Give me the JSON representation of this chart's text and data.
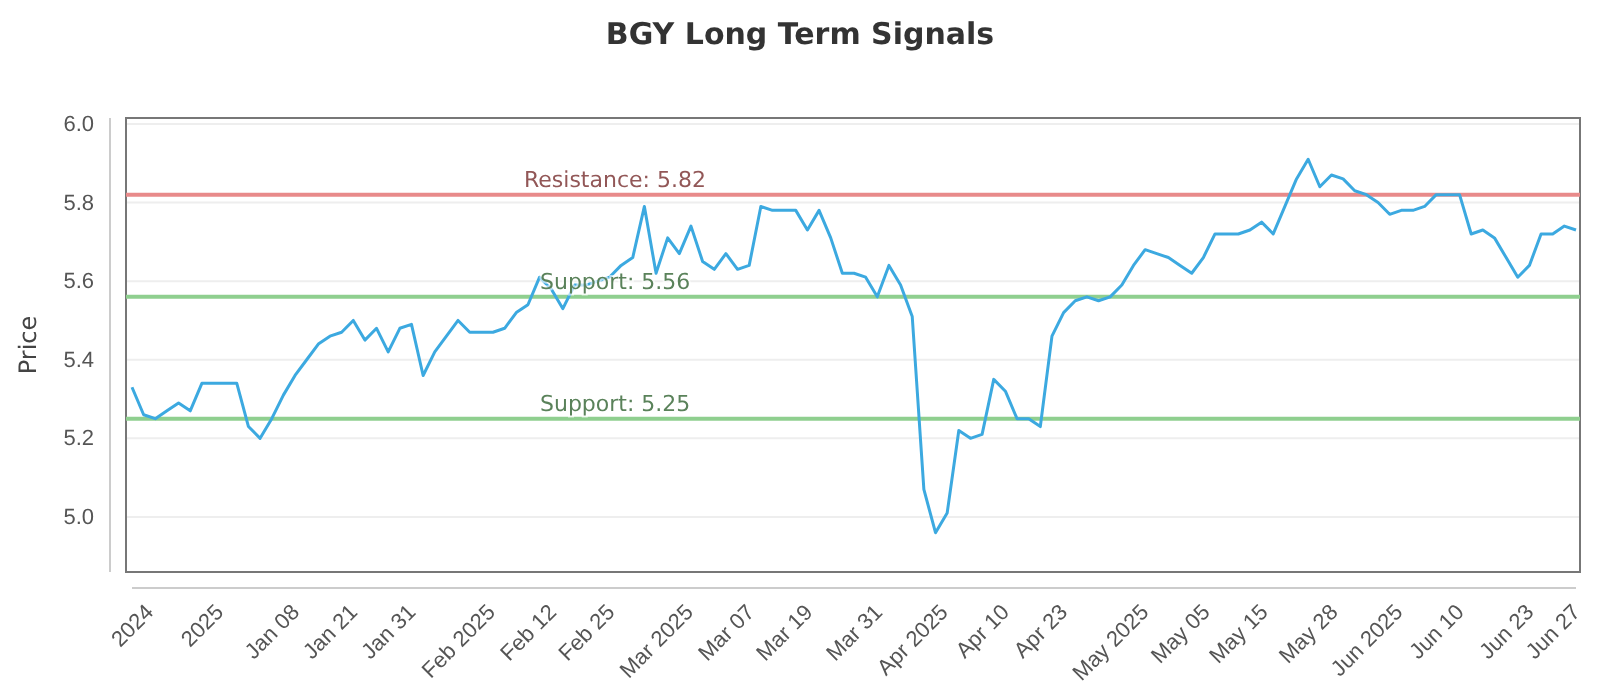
{
  "chart_data": {
    "type": "line",
    "title": "BGY Long Term Signals",
    "ylabel": "Price",
    "categories": [
      "2024",
      null,
      null,
      null,
      null,
      null,
      "2025",
      null,
      null,
      null,
      null,
      null,
      "Jan 08",
      null,
      null,
      null,
      null,
      "Jan 21",
      null,
      null,
      null,
      null,
      "Jan 31",
      null,
      null,
      null,
      null,
      null,
      "Feb 2025",
      null,
      null,
      null,
      null,
      null,
      "Feb 12",
      null,
      null,
      null,
      null,
      "Feb 25",
      null,
      null,
      null,
      null,
      null,
      "Mar 2025",
      null,
      null,
      null,
      null,
      null,
      "Mar 07",
      null,
      null,
      null,
      null,
      "Mar 19",
      null,
      null,
      null,
      null,
      null,
      "Mar 31",
      null,
      null,
      null,
      null,
      "Apr 2025",
      null,
      null,
      null,
      null,
      null,
      "Apr 10",
      null,
      null,
      null,
      null,
      "Apr 23",
      null,
      null,
      null,
      null,
      null,
      "May 2025",
      null,
      null,
      null,
      null,
      null,
      "May 05",
      null,
      null,
      null,
      null,
      "May 15",
      null,
      null,
      null,
      null,
      null,
      "May 28",
      null,
      null,
      null,
      null,
      "Jun 2025",
      null,
      null,
      null,
      null,
      null,
      "Jun 10",
      null,
      null,
      null,
      null,
      null,
      "Jun 23",
      null,
      null,
      null,
      "Jun 27",
      null,
      null
    ],
    "series": [
      {
        "color": "#3ca9e0",
        "values": [
          5.33,
          5.26,
          5.25,
          5.27,
          5.29,
          5.27,
          5.34,
          5.34,
          5.34,
          5.34,
          5.23,
          5.2,
          5.25,
          5.31,
          5.36,
          5.4,
          5.44,
          5.46,
          5.47,
          5.5,
          5.45,
          5.48,
          5.42,
          5.48,
          5.49,
          5.36,
          5.42,
          5.46,
          5.5,
          5.47,
          5.47,
          5.47,
          5.48,
          5.52,
          5.54,
          5.61,
          5.58,
          5.53,
          5.59,
          5.59,
          5.6,
          5.61,
          5.64,
          5.66,
          5.79,
          5.62,
          5.71,
          5.67,
          5.74,
          5.65,
          5.63,
          5.67,
          5.63,
          5.64,
          5.79,
          5.78,
          5.78,
          5.78,
          5.73,
          5.78,
          5.71,
          5.62,
          5.62,
          5.61,
          5.56,
          5.64,
          5.59,
          5.51,
          5.07,
          4.96,
          5.01,
          5.22,
          5.2,
          5.21,
          5.35,
          5.32,
          5.25,
          5.25,
          5.23,
          5.46,
          5.52,
          5.55,
          5.56,
          5.55,
          5.56,
          5.59,
          5.64,
          5.68,
          5.67,
          5.66,
          5.64,
          5.62,
          5.66,
          5.72,
          5.72,
          5.72,
          5.73,
          5.75,
          5.72,
          5.79,
          5.86,
          5.91,
          5.84,
          5.87,
          5.86,
          5.83,
          5.82,
          5.8,
          5.77,
          5.78,
          5.78,
          5.79,
          5.82,
          5.82,
          5.82,
          5.72,
          5.73,
          5.71,
          5.66,
          5.61,
          5.64,
          5.72,
          5.72,
          5.74,
          5.73
        ]
      }
    ],
    "ylim": [
      4.86,
      6.015
    ],
    "yticks": [
      {
        "value": 5.0,
        "label": "5.0"
      },
      {
        "value": 5.2,
        "label": "5.2"
      },
      {
        "value": 5.4,
        "label": "5.4"
      },
      {
        "value": 5.6,
        "label": "5.6"
      },
      {
        "value": 5.8,
        "label": "5.8"
      },
      {
        "value": 6.0,
        "label": "6.0"
      }
    ],
    "grid": "y",
    "marker": "none",
    "line_style": "solid",
    "ref_lines": [
      {
        "axis": "y",
        "value": 5.82,
        "label": "Resistance: 5.82",
        "color": "#e88a8a"
      },
      {
        "axis": "y",
        "value": 5.56,
        "label": "Support: 5.56",
        "color": "#8fcf8f"
      },
      {
        "axis": "y",
        "value": 5.25,
        "label": "Support: 5.25",
        "color": "#8fcf8f"
      }
    ]
  }
}
